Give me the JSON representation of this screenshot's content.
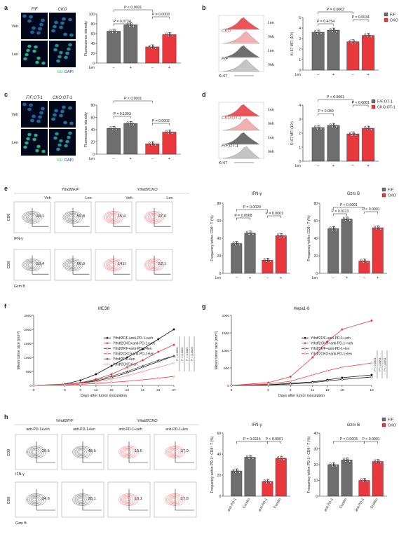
{
  "colors": {
    "ff": "#6e6e6e",
    "cko": "#e8383d",
    "micro_green": "#2fbf5b",
    "micro_blue": "#1f3fa0"
  },
  "legend": {
    "ff": "F/F",
    "cko": "CKO",
    "ff_ot1": "F/F;OT-1",
    "cko_ot1": "CKO;OT-1"
  },
  "axis_common": {
    "len": "Len",
    "minus": "−",
    "plus": "+"
  },
  "panel_a": {
    "label": "a",
    "col_ff": "F/F",
    "col_cko": "CKO",
    "row_veh": "Veh",
    "row_len": "Len",
    "stain_eu": "EU",
    "stain_dapi": "DAPI",
    "ylabel": "Fluorescence intensity",
    "p1": "P = 0.0734",
    "p2": "P < 0.0001",
    "p3": "P = 0.0003",
    "chart_data": {
      "type": "bar",
      "categories": [
        "F/F −",
        "F/F +",
        "CKO −",
        "CKO +"
      ],
      "values": [
        65,
        78,
        33,
        58
      ],
      "ylim": [
        0,
        100
      ],
      "yticks": [
        0,
        20,
        40,
        60,
        80,
        100
      ]
    }
  },
  "panel_b": {
    "label": "b",
    "hist_labels": [
      "CKO",
      "F/F"
    ],
    "row_labels": [
      "Len",
      "Veh",
      "Len",
      "Veh"
    ],
    "xlabel": "Ki-67",
    "ylabel": "Ki-67 MFI (10³)",
    "p1": "P = 0.4754",
    "p2": "P = 0.0002",
    "p3": "P = 0.0034",
    "chart_data": {
      "type": "bar",
      "categories": [
        "F/F −",
        "F/F +",
        "CKO −",
        "CKO +"
      ],
      "values": [
        3.6,
        3.8,
        2.7,
        3.3
      ],
      "ylim": [
        0,
        5
      ],
      "yticks": [
        0,
        1,
        2,
        3,
        4,
        5
      ]
    }
  },
  "panel_c": {
    "label": "c",
    "col_ff": "F/F;OT-1",
    "col_cko": "CKO;OT-1",
    "row_veh": "Veh",
    "row_len": "Len",
    "stain_eu": "EU",
    "stain_dapi": "DAPI",
    "ylabel": "Fluorescence intensity",
    "p1": "P = 0.1303",
    "p2": "P < 0.0001",
    "p3": "P = 0.0002",
    "chart_data": {
      "type": "bar",
      "categories": [
        "F/F −",
        "F/F +",
        "CKO −",
        "CKO +"
      ],
      "values": [
        42,
        50,
        17,
        36
      ],
      "ylim": [
        0,
        80
      ],
      "yticks": [
        0,
        20,
        40,
        60,
        80
      ]
    }
  },
  "panel_d": {
    "label": "d",
    "hist_labels": [
      "CKO;OT-1",
      "F/F;OT-1"
    ],
    "row_labels": [
      "Len",
      "Veh",
      "Len",
      "Veh"
    ],
    "xlabel": "Ki-67",
    "ylabel": "Ki-67 MFI (10³)",
    "p1": "P = 0.080",
    "p2": "P < 0.0001",
    "p3": "P < 0.0001",
    "chart_data": {
      "type": "bar",
      "categories": [
        "F/F −",
        "F/F +",
        "CKO −",
        "CKO +"
      ],
      "values": [
        2.4,
        2.55,
        1.95,
        2.35
      ],
      "ylim": [
        0,
        4
      ],
      "yticks": [
        0,
        1,
        2,
        3,
        4
      ]
    }
  },
  "panel_e": {
    "label": "e",
    "group_ff": "Ythdf2F/F",
    "group_cko": "Ythdf2CKO",
    "cols": [
      "Veh",
      "Len",
      "Veh",
      "Len"
    ],
    "top_vals": [
      "40.1",
      "50.8",
      "15.4",
      "47.0"
    ],
    "bottom_vals": [
      "50.4",
      "66.9",
      "14.0",
      "52.1"
    ],
    "y_top": "CD8",
    "x_top": "IFN-γ",
    "y_bottom": "CD8",
    "x_bottom": "Gzm B",
    "ifng_title": "IFN-γ",
    "ifng_ylabel": "Frequency within CD8⁺ T (%)",
    "ifng_p1": "P = 0.0568",
    "ifng_p2": "P = 0.0029",
    "ifng_p3": "P = 0.0001",
    "gzmb_title": "Gzm B",
    "gzmb_ylabel": "Frequency within CD8⁺ T (%)",
    "gzmb_p1": "P = 0.0113",
    "gzmb_p2": "P < 0.0001",
    "gzmb_p3": "P < 0.0001",
    "chart_data": [
      {
        "type": "bar",
        "categories": [
          "F/F −",
          "F/F +",
          "CKO −",
          "CKO +"
        ],
        "values": [
          34,
          46,
          15,
          43
        ],
        "ylim": [
          0,
          80
        ],
        "yticks": [
          0,
          20,
          40,
          60,
          80
        ]
      },
      {
        "type": "bar",
        "categories": [
          "F/F −",
          "F/F +",
          "CKO −",
          "CKO +"
        ],
        "values": [
          51,
          62,
          14,
          52
        ],
        "ylim": [
          0,
          80
        ],
        "yticks": [
          0,
          20,
          40,
          60,
          80
        ]
      }
    ]
  },
  "panel_f": {
    "label": "f",
    "title": "MC38",
    "ylabel": "Mean tumor size (mm³)",
    "xlabel": "Days after tumor inoculation",
    "legend": [
      "Ythdf2F/F+anti-PD-1+veh",
      "Ythdf2CKO+anti-PD-1+veh",
      "Ythdf2F/F+anti-PD-1+len",
      "Ythdf2CKO+anti-PD-1+len",
      "Ythdf2F/F+len",
      "Ythdf2CKO+len"
    ],
    "pvals": [
      "P < 0.0001",
      "P = 0.0001",
      "P = 0.0001",
      "P = 0.0003"
    ],
    "chart_data": {
      "type": "line",
      "x": [
        0,
        6,
        9,
        12,
        15,
        18,
        21,
        24,
        27
      ],
      "xlim": [
        0,
        27
      ],
      "ylim": [
        0,
        2500
      ],
      "yticks": [
        0,
        500,
        1000,
        1500,
        2000,
        2500
      ],
      "series": [
        {
          "name": "Ythdf2F/F+anti-PD-1+veh",
          "values": [
            0,
            50,
            180,
            400,
            700,
            1000,
            1300,
            1650,
            2000
          ]
        },
        {
          "name": "Ythdf2CKO+anti-PD-1+veh",
          "values": [
            0,
            40,
            100,
            220,
            400,
            650,
            900,
            1200,
            1450
          ]
        },
        {
          "name": "Ythdf2F/F+anti-PD-1+len",
          "values": [
            0,
            30,
            80,
            160,
            280,
            450,
            650,
            850,
            1050
          ]
        },
        {
          "name": "Ythdf2CKO+anti-PD-1+len",
          "values": [
            0,
            20,
            40,
            70,
            110,
            150,
            200,
            260,
            320
          ]
        },
        {
          "name": "Ythdf2F/F+len",
          "values": [
            0,
            35,
            90,
            190,
            330,
            500,
            700,
            900,
            1050
          ]
        },
        {
          "name": "Ythdf2CKO+len",
          "values": [
            0,
            30,
            70,
            130,
            220,
            350,
            500,
            650,
            800
          ]
        }
      ]
    }
  },
  "panel_g": {
    "label": "g",
    "title": "Hepa1-6",
    "ylabel": "Mean tumor size (mm³)",
    "xlabel": "Days after tumor inoculation",
    "legend": [
      "Ythdf2F/F+anti-PD-1+veh",
      "Ythdf2CKO+anti-PD-1+veh",
      "Ythdf2F/F+anti-PD-1+len",
      "Ythdf2CKO+anti-PD-1+len"
    ],
    "pvals": [
      "P < 0.0001",
      "P < 0.0001",
      "P = 0.0001"
    ],
    "chart_data": {
      "type": "line",
      "x": [
        0,
        5,
        8,
        11,
        13,
        15,
        19
      ],
      "xlim": [
        0,
        19
      ],
      "ylim": [
        0,
        2000
      ],
      "yticks": [
        0,
        500,
        1000,
        1500,
        2000
      ],
      "series": [
        {
          "name": "Ythdf2F/F+anti-PD-1+veh",
          "values": [
            0,
            20,
            60,
            100,
            160,
            220,
            300
          ]
        },
        {
          "name": "Ythdf2CKO+anti-PD-1+veh",
          "values": [
            0,
            80,
            250,
            800,
            1250,
            1600,
            1850
          ]
        },
        {
          "name": "Ythdf2F/F+anti-PD-1+len",
          "values": [
            0,
            15,
            40,
            80,
            130,
            170,
            240
          ]
        },
        {
          "name": "Ythdf2CKO+anti-PD-1+len",
          "values": [
            0,
            40,
            120,
            300,
            420,
            520,
            640
          ]
        }
      ]
    }
  },
  "panel_h": {
    "label": "h",
    "group_ff": "Ythdf2F/F",
    "group_cko": "Ythdf2CKO",
    "cols": [
      "anti-PD-1+veh",
      "anti-PD-1+len",
      "anti-PD-1+veh",
      "anti-PD-1+len"
    ],
    "top_vals": [
      "20.5",
      "48.5",
      "13.6",
      "37.0"
    ],
    "bottom_vals": [
      "24.6",
      "28.1",
      "10.1",
      "27.8"
    ],
    "y_top": "CD8",
    "x_top": "IFN-γ",
    "y_bottom": "CD8",
    "x_bottom": "Gzm B",
    "ifng_title": "IFN-γ",
    "ifng_ylabel": "Frequency within PD-1⁺ CD8⁺ T (%)",
    "ifng_p1": "P = 0.0114",
    "ifng_p2": "P < 0.0001",
    "gzmb_title": "Gzm B",
    "gzmb_ylabel": "Frequency within PD-1⁺ CD8⁺ T (%)",
    "gzmb_p1": "P = 0.0003",
    "gzmb_p2": "P < 0.0001",
    "xcat": [
      "anti-PD-1",
      "Combo",
      "anti-PD-1",
      "Combo"
    ],
    "chart_data": [
      {
        "type": "bar",
        "categories": [
          "F/F anti-PD-1",
          "F/F Combo",
          "CKO anti-PD-1",
          "CKO Combo"
        ],
        "values": [
          24,
          37,
          14,
          36
        ],
        "ylim": [
          0,
          60
        ],
        "yticks": [
          0,
          20,
          40,
          60
        ]
      },
      {
        "type": "bar",
        "categories": [
          "F/F anti-PD-1",
          "F/F Combo",
          "CKO anti-PD-1",
          "CKO Combo"
        ],
        "values": [
          20,
          23,
          10,
          22
        ],
        "ylim": [
          0,
          40
        ],
        "yticks": [
          0,
          10,
          20,
          30,
          40
        ]
      }
    ]
  }
}
